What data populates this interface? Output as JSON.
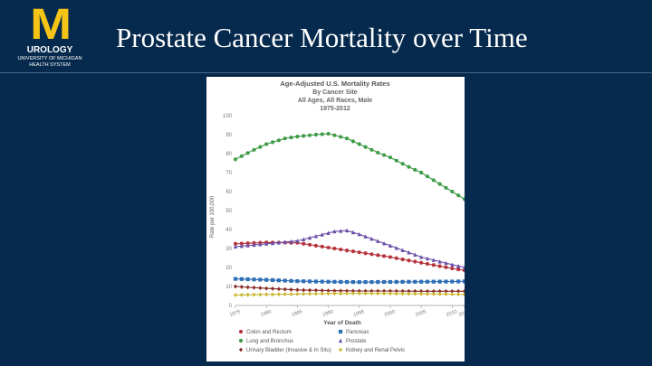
{
  "slide": {
    "title": "Prostate Cancer Mortality over Time",
    "logo": {
      "mark": "M",
      "department": "UROLOGY",
      "university_line1": "UNIVERSITY OF MICHIGAN",
      "university_line2": "HEALTH SYSTEM"
    }
  },
  "chart_data": {
    "type": "line",
    "title": "Age-Adjusted U.S. Mortality Rates",
    "subtitle_lines": [
      "By Cancer Site",
      "All Ages, All Races, Male",
      "1975-2012"
    ],
    "xlabel": "Year of Death",
    "ylabel": "Rate per 100,000",
    "xlim": [
      1975,
      2012
    ],
    "ylim": [
      0,
      100
    ],
    "yticks": [
      0,
      10,
      20,
      30,
      40,
      50,
      60,
      70,
      80,
      90,
      100
    ],
    "xticks": [
      "1975",
      "1980",
      "1985",
      "1990",
      "1995",
      "2000",
      "2005",
      "2010",
      "2012"
    ],
    "grid": false,
    "legend_position": "bottom",
    "series": [
      {
        "name": "Colon and Rectum",
        "color": "#b5343c",
        "marker": "circle",
        "points": [
          [
            1975,
            32.5
          ],
          [
            1980,
            33.2
          ],
          [
            1985,
            33.0
          ],
          [
            1990,
            30.5
          ],
          [
            1995,
            28.0
          ],
          [
            2000,
            25.5
          ],
          [
            2005,
            22.5
          ],
          [
            2010,
            19.5
          ],
          [
            2012,
            18.5
          ]
        ]
      },
      {
        "name": "Pancreas",
        "color": "#2e6fb5",
        "marker": "square",
        "points": [
          [
            1975,
            14.0
          ],
          [
            1980,
            13.5
          ],
          [
            1985,
            12.8
          ],
          [
            1990,
            12.5
          ],
          [
            1995,
            12.3
          ],
          [
            2000,
            12.4
          ],
          [
            2005,
            12.5
          ],
          [
            2010,
            12.6
          ],
          [
            2012,
            12.7
          ]
        ]
      },
      {
        "name": "Lung and Bronchus",
        "color": "#3e9b47",
        "marker": "circle",
        "points": [
          [
            1975,
            77.0
          ],
          [
            1978,
            82.0
          ],
          [
            1980,
            85.0
          ],
          [
            1983,
            88.0
          ],
          [
            1985,
            89.0
          ],
          [
            1988,
            90.0
          ],
          [
            1990,
            90.5
          ],
          [
            1993,
            88.0
          ],
          [
            1995,
            85.0
          ],
          [
            1998,
            80.5
          ],
          [
            2000,
            78.0
          ],
          [
            2003,
            73.0
          ],
          [
            2005,
            70.0
          ],
          [
            2008,
            64.0
          ],
          [
            2010,
            60.0
          ],
          [
            2012,
            56.0
          ]
        ]
      },
      {
        "name": "Prostate",
        "color": "#6b4ea8",
        "marker": "triangle",
        "points": [
          [
            1975,
            31.0
          ],
          [
            1980,
            32.5
          ],
          [
            1985,
            34.0
          ],
          [
            1988,
            36.5
          ],
          [
            1991,
            39.0
          ],
          [
            1993,
            39.5
          ],
          [
            1995,
            37.5
          ],
          [
            2000,
            31.5
          ],
          [
            2005,
            25.5
          ],
          [
            2010,
            21.5
          ],
          [
            2012,
            20.0
          ]
        ]
      },
      {
        "name": "Urinary Bladder (Invasive & In Situ)",
        "color": "#8a2a2a",
        "marker": "diamond",
        "points": [
          [
            1975,
            10.0
          ],
          [
            1980,
            9.0
          ],
          [
            1985,
            8.2
          ],
          [
            1990,
            7.8
          ],
          [
            1995,
            7.6
          ],
          [
            2000,
            7.6
          ],
          [
            2005,
            7.5
          ],
          [
            2010,
            7.5
          ],
          [
            2012,
            7.5
          ]
        ]
      },
      {
        "name": "Kidney and Renal Pelvis",
        "color": "#c9b834",
        "marker": "diamond",
        "points": [
          [
            1975,
            5.5
          ],
          [
            1980,
            5.8
          ],
          [
            1985,
            6.0
          ],
          [
            1990,
            6.3
          ],
          [
            1995,
            6.4
          ],
          [
            2000,
            6.3
          ],
          [
            2005,
            6.1
          ],
          [
            2010,
            5.9
          ],
          [
            2012,
            5.8
          ]
        ]
      }
    ]
  }
}
